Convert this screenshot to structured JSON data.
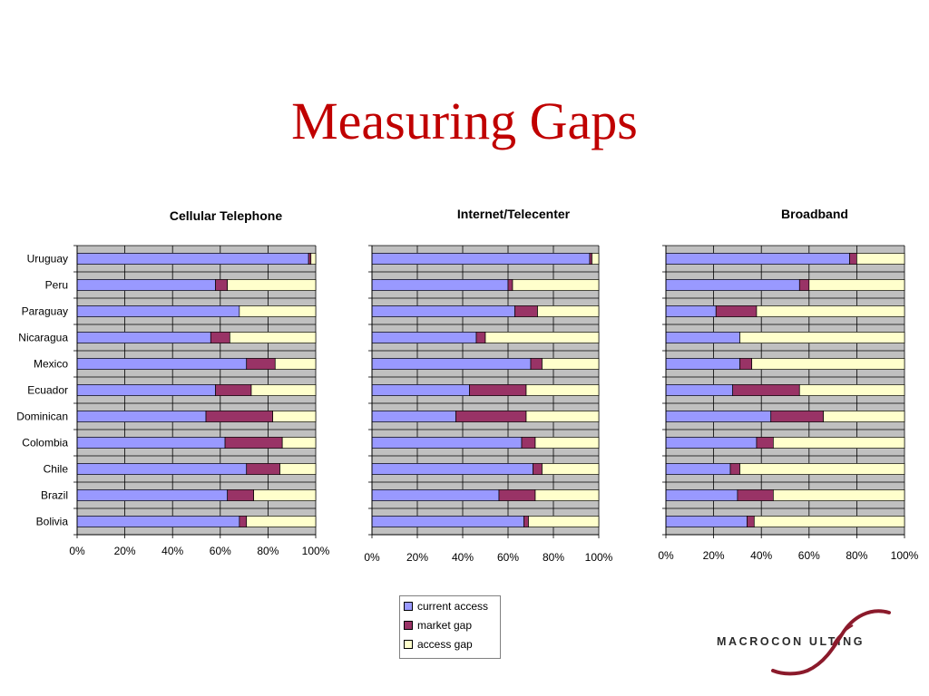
{
  "slide": {
    "title": "Measuring Gaps"
  },
  "colors": {
    "current": "#9999ff",
    "market": "#993366",
    "access": "#ffffcc",
    "plot_bg": "#c0c0c0"
  },
  "legend": {
    "items": [
      {
        "label": "current access",
        "color": "#9999ff"
      },
      {
        "label": "market gap",
        "color": "#993366"
      },
      {
        "label": "access gap",
        "color": "#ffffcc"
      }
    ]
  },
  "logo": {
    "text": "MACROCON ULTING"
  },
  "chart_data": [
    {
      "type": "bar",
      "stacked": true,
      "orientation": "horizontal",
      "title": "Cellular Telephone",
      "categories": [
        "Uruguay",
        "Peru",
        "Paraguay",
        "Nicaragua",
        "Mexico",
        "Ecuador",
        "Dominican",
        "Colombia",
        "Chile",
        "Brazil",
        "Bolivia"
      ],
      "series": [
        {
          "name": "current access",
          "values": [
            97,
            58,
            68,
            56,
            71,
            58,
            54,
            62,
            71,
            63,
            68
          ]
        },
        {
          "name": "market gap",
          "values": [
            1,
            5,
            0,
            8,
            12,
            15,
            28,
            24,
            14,
            11,
            3
          ]
        },
        {
          "name": "access gap",
          "values": [
            2,
            37,
            32,
            36,
            17,
            27,
            18,
            14,
            15,
            26,
            29
          ]
        }
      ],
      "xlim": [
        0,
        100
      ],
      "xticks": [
        "0%",
        "20%",
        "40%",
        "60%",
        "80%",
        "100%"
      ],
      "grid": true
    },
    {
      "type": "bar",
      "stacked": true,
      "orientation": "horizontal",
      "title": "Internet/Telecenter",
      "series": [
        {
          "name": "current access",
          "values": [
            96,
            60,
            63,
            46,
            70,
            43,
            37,
            66,
            71,
            56,
            67
          ]
        },
        {
          "name": "market gap",
          "values": [
            1,
            2,
            10,
            4,
            5,
            25,
            31,
            6,
            4,
            16,
            2
          ]
        },
        {
          "name": "access gap",
          "values": [
            3,
            38,
            27,
            50,
            25,
            32,
            32,
            28,
            25,
            28,
            31
          ]
        }
      ],
      "xlim": [
        0,
        100
      ],
      "xticks": [
        "0%",
        "20%",
        "40%",
        "60%",
        "80%",
        "100%"
      ],
      "grid": true
    },
    {
      "type": "bar",
      "stacked": true,
      "orientation": "horizontal",
      "title": "Broadband",
      "series": [
        {
          "name": "current access",
          "values": [
            77,
            56,
            21,
            31,
            31,
            28,
            44,
            38,
            27,
            30,
            34
          ]
        },
        {
          "name": "market gap",
          "values": [
            3,
            4,
            17,
            0,
            5,
            28,
            22,
            7,
            4,
            15,
            3
          ]
        },
        {
          "name": "access gap",
          "values": [
            20,
            40,
            62,
            69,
            64,
            44,
            34,
            55,
            69,
            55,
            63
          ]
        }
      ],
      "xlim": [
        0,
        100
      ],
      "xticks": [
        "0%",
        "20%",
        "40%",
        "60%",
        "80%",
        "100%"
      ],
      "grid": true
    }
  ]
}
